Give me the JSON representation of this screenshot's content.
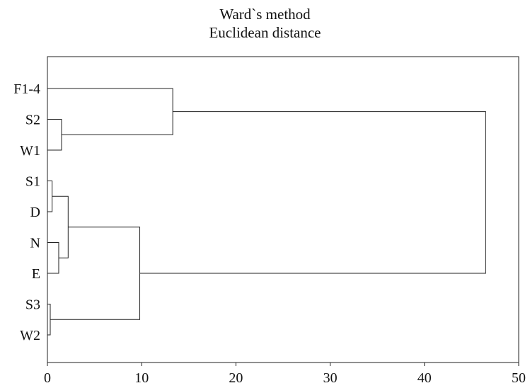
{
  "chart_data": {
    "type": "dendrogram",
    "title": "Ward`s method",
    "subtitle": "Euclidean distance",
    "xlabel": "",
    "ylabel": "",
    "xlim": [
      0,
      50
    ],
    "x_ticks": [
      0,
      10,
      20,
      30,
      40,
      50
    ],
    "grid": false,
    "leaves": [
      "F1-4",
      "S2",
      "W1",
      "S1",
      "D",
      "N",
      "E",
      "S3",
      "W2"
    ],
    "merges": [
      {
        "left": "S3",
        "right": "W2",
        "height": 0.3
      },
      {
        "left": "S1",
        "right": "D",
        "height": 0.5
      },
      {
        "left": "N",
        "right": "E",
        "height": 1.2
      },
      {
        "left": "S2",
        "right": "W1",
        "height": 1.5
      },
      {
        "left": "S1+D",
        "right": "N+E",
        "height": 2.2
      },
      {
        "left": "S1+D+N+E",
        "right": "S3+W2",
        "height": 9.8
      },
      {
        "left": "F1-4",
        "right": "S2+W1",
        "height": 13.3
      },
      {
        "left": "F1-4+S2+W1",
        "right": "S1+D+N+E+S3+W2",
        "height": 46.5
      }
    ]
  }
}
